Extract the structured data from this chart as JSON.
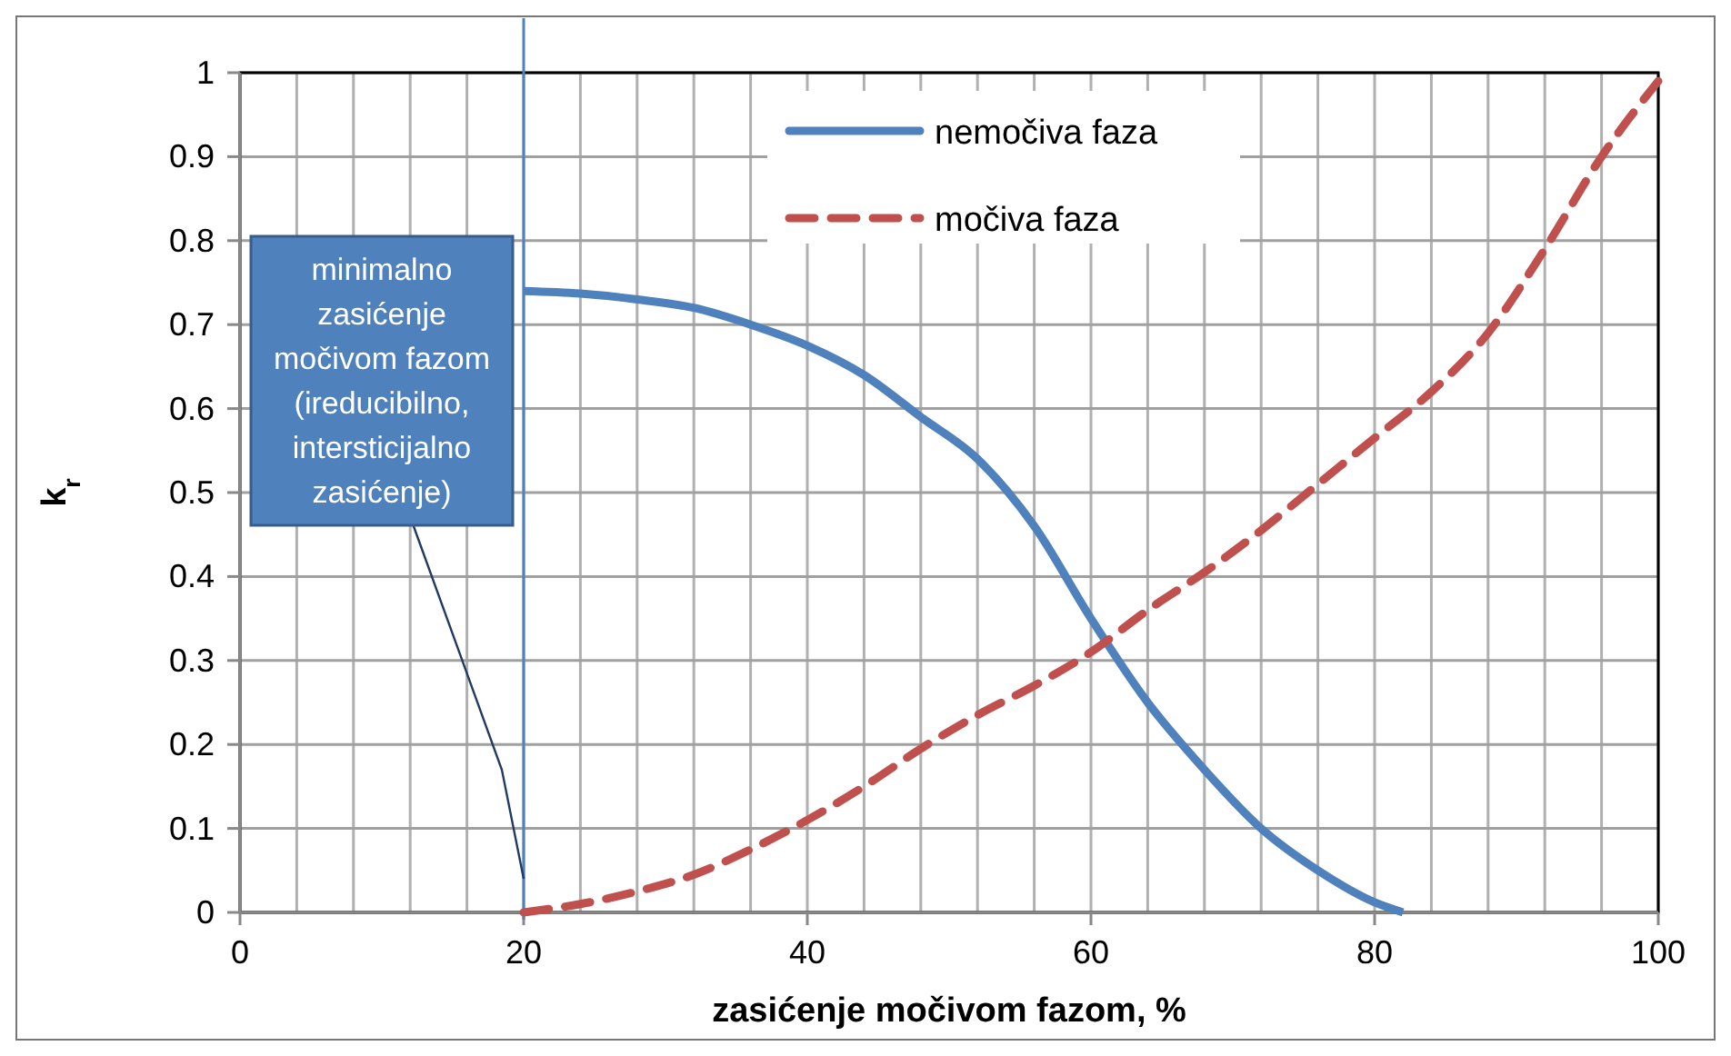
{
  "chart_data": {
    "type": "line",
    "xlabel": "zasićenje močivom fazom, %",
    "ylabel": "k$_{r}$",
    "xlim": [
      0,
      100
    ],
    "ylim": [
      0,
      1
    ],
    "xticks": [
      0,
      {
        "value": 4,
        "label": null
      },
      {
        "value": 8,
        "label": null
      },
      {
        "value": 12,
        "label": null
      },
      {
        "value": 16,
        "label": null
      },
      20,
      {
        "value": 24,
        "label": null
      },
      {
        "value": 28,
        "label": null
      },
      {
        "value": 32,
        "label": null
      },
      {
        "value": 36,
        "label": null
      },
      40,
      {
        "value": 44,
        "label": null
      },
      {
        "value": 48,
        "label": null
      },
      {
        "value": 52,
        "label": null
      },
      {
        "value": 56,
        "label": null
      },
      60,
      {
        "value": 64,
        "label": null
      },
      {
        "value": 68,
        "label": null
      },
      {
        "value": 72,
        "label": null
      },
      {
        "value": 76,
        "label": null
      },
      80,
      {
        "value": 84,
        "label": null
      },
      {
        "value": 88,
        "label": null
      },
      {
        "value": 92,
        "label": null
      },
      {
        "value": 96,
        "label": null
      },
      100
    ],
    "yticks": [
      0,
      0.1,
      0.2,
      0.3,
      0.4,
      0.5,
      0.6,
      0.7,
      0.8,
      0.9,
      1
    ],
    "grid": true,
    "legend": "top",
    "marker": "none",
    "series": [
      {
        "name": "nemočiva faza",
        "color": "#4f81bd",
        "line_style": "solid",
        "x": [
          20,
          24,
          28,
          32,
          36,
          40,
          44,
          48,
          52,
          56,
          60,
          64,
          68,
          72,
          76,
          80,
          82
        ],
        "values": [
          0.74,
          0.737,
          0.73,
          0.72,
          0.7,
          0.675,
          0.64,
          0.59,
          0.54,
          0.46,
          0.35,
          0.25,
          0.17,
          0.1,
          0.05,
          0.012,
          0
        ]
      },
      {
        "name": "močiva faza",
        "color": "#c0504d",
        "line_style": "dashed",
        "x": [
          20,
          24,
          28,
          32,
          36,
          40,
          44,
          48,
          52,
          56,
          60,
          64,
          68,
          72,
          76,
          80,
          84,
          88,
          92,
          96,
          100
        ],
        "values": [
          0,
          0.01,
          0.025,
          0.045,
          0.075,
          0.11,
          0.15,
          0.195,
          0.235,
          0.27,
          0.31,
          0.36,
          0.405,
          0.455,
          0.51,
          0.565,
          0.62,
          0.69,
          0.79,
          0.9,
          0.99
        ]
      }
    ],
    "ref_lines": [
      {
        "axis": "x",
        "value": 20,
        "color": "#4f81bd"
      }
    ],
    "annotations": [
      {
        "text": "minimalno zasićenje močivom fazom (ireducibilno, intersticijalno zasićenje)",
        "x": 20,
        "y": 0.04
      }
    ]
  }
}
